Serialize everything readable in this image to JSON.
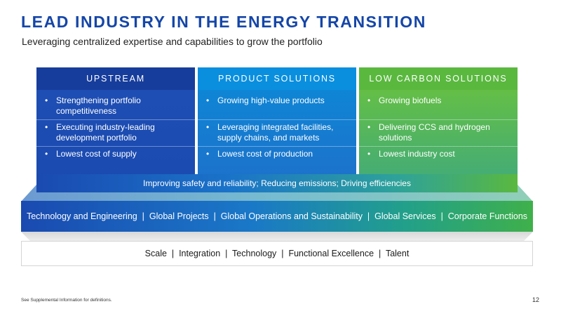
{
  "title": "LEAD INDUSTRY IN THE ENERGY TRANSITION",
  "subtitle": "Leveraging centralized expertise and capabilities to grow the portfolio",
  "pillars": [
    {
      "heading": "UPSTREAM",
      "items": [
        "Strengthening portfolio competitiveness",
        "Executing industry-leading development portfolio",
        "Lowest cost of supply"
      ]
    },
    {
      "heading": "PRODUCT SOLUTIONS",
      "items": [
        "Growing high-value products",
        "Leveraging integrated facilities, supply chains, and markets",
        "Lowest cost of production"
      ]
    },
    {
      "heading": "LOW CARBON SOLUTIONS",
      "items": [
        "Growing biofuels",
        "Delivering CCS and hydrogen solutions",
        "Lowest industry cost"
      ]
    }
  ],
  "bullet_char": "•",
  "strip_text": "Improving safety and reliability; Reducing emissions; Driving efficiencies",
  "middle_layer": "Technology and Engineering  |  Global Projects  |  Global Operations and Sustainability  |  Global Services  |  Corporate Functions",
  "bottom_layer": "Scale  |  Integration  |  Technology  |  Functional Excellence  |  Talent",
  "footnote": "See Supplemental Information for definitions.",
  "page_number": "12",
  "colors": {
    "title": "#1546a8",
    "upstream": "#173d9c",
    "product_solutions": "#0a8fdf",
    "low_carbon": "#5ab83f"
  }
}
